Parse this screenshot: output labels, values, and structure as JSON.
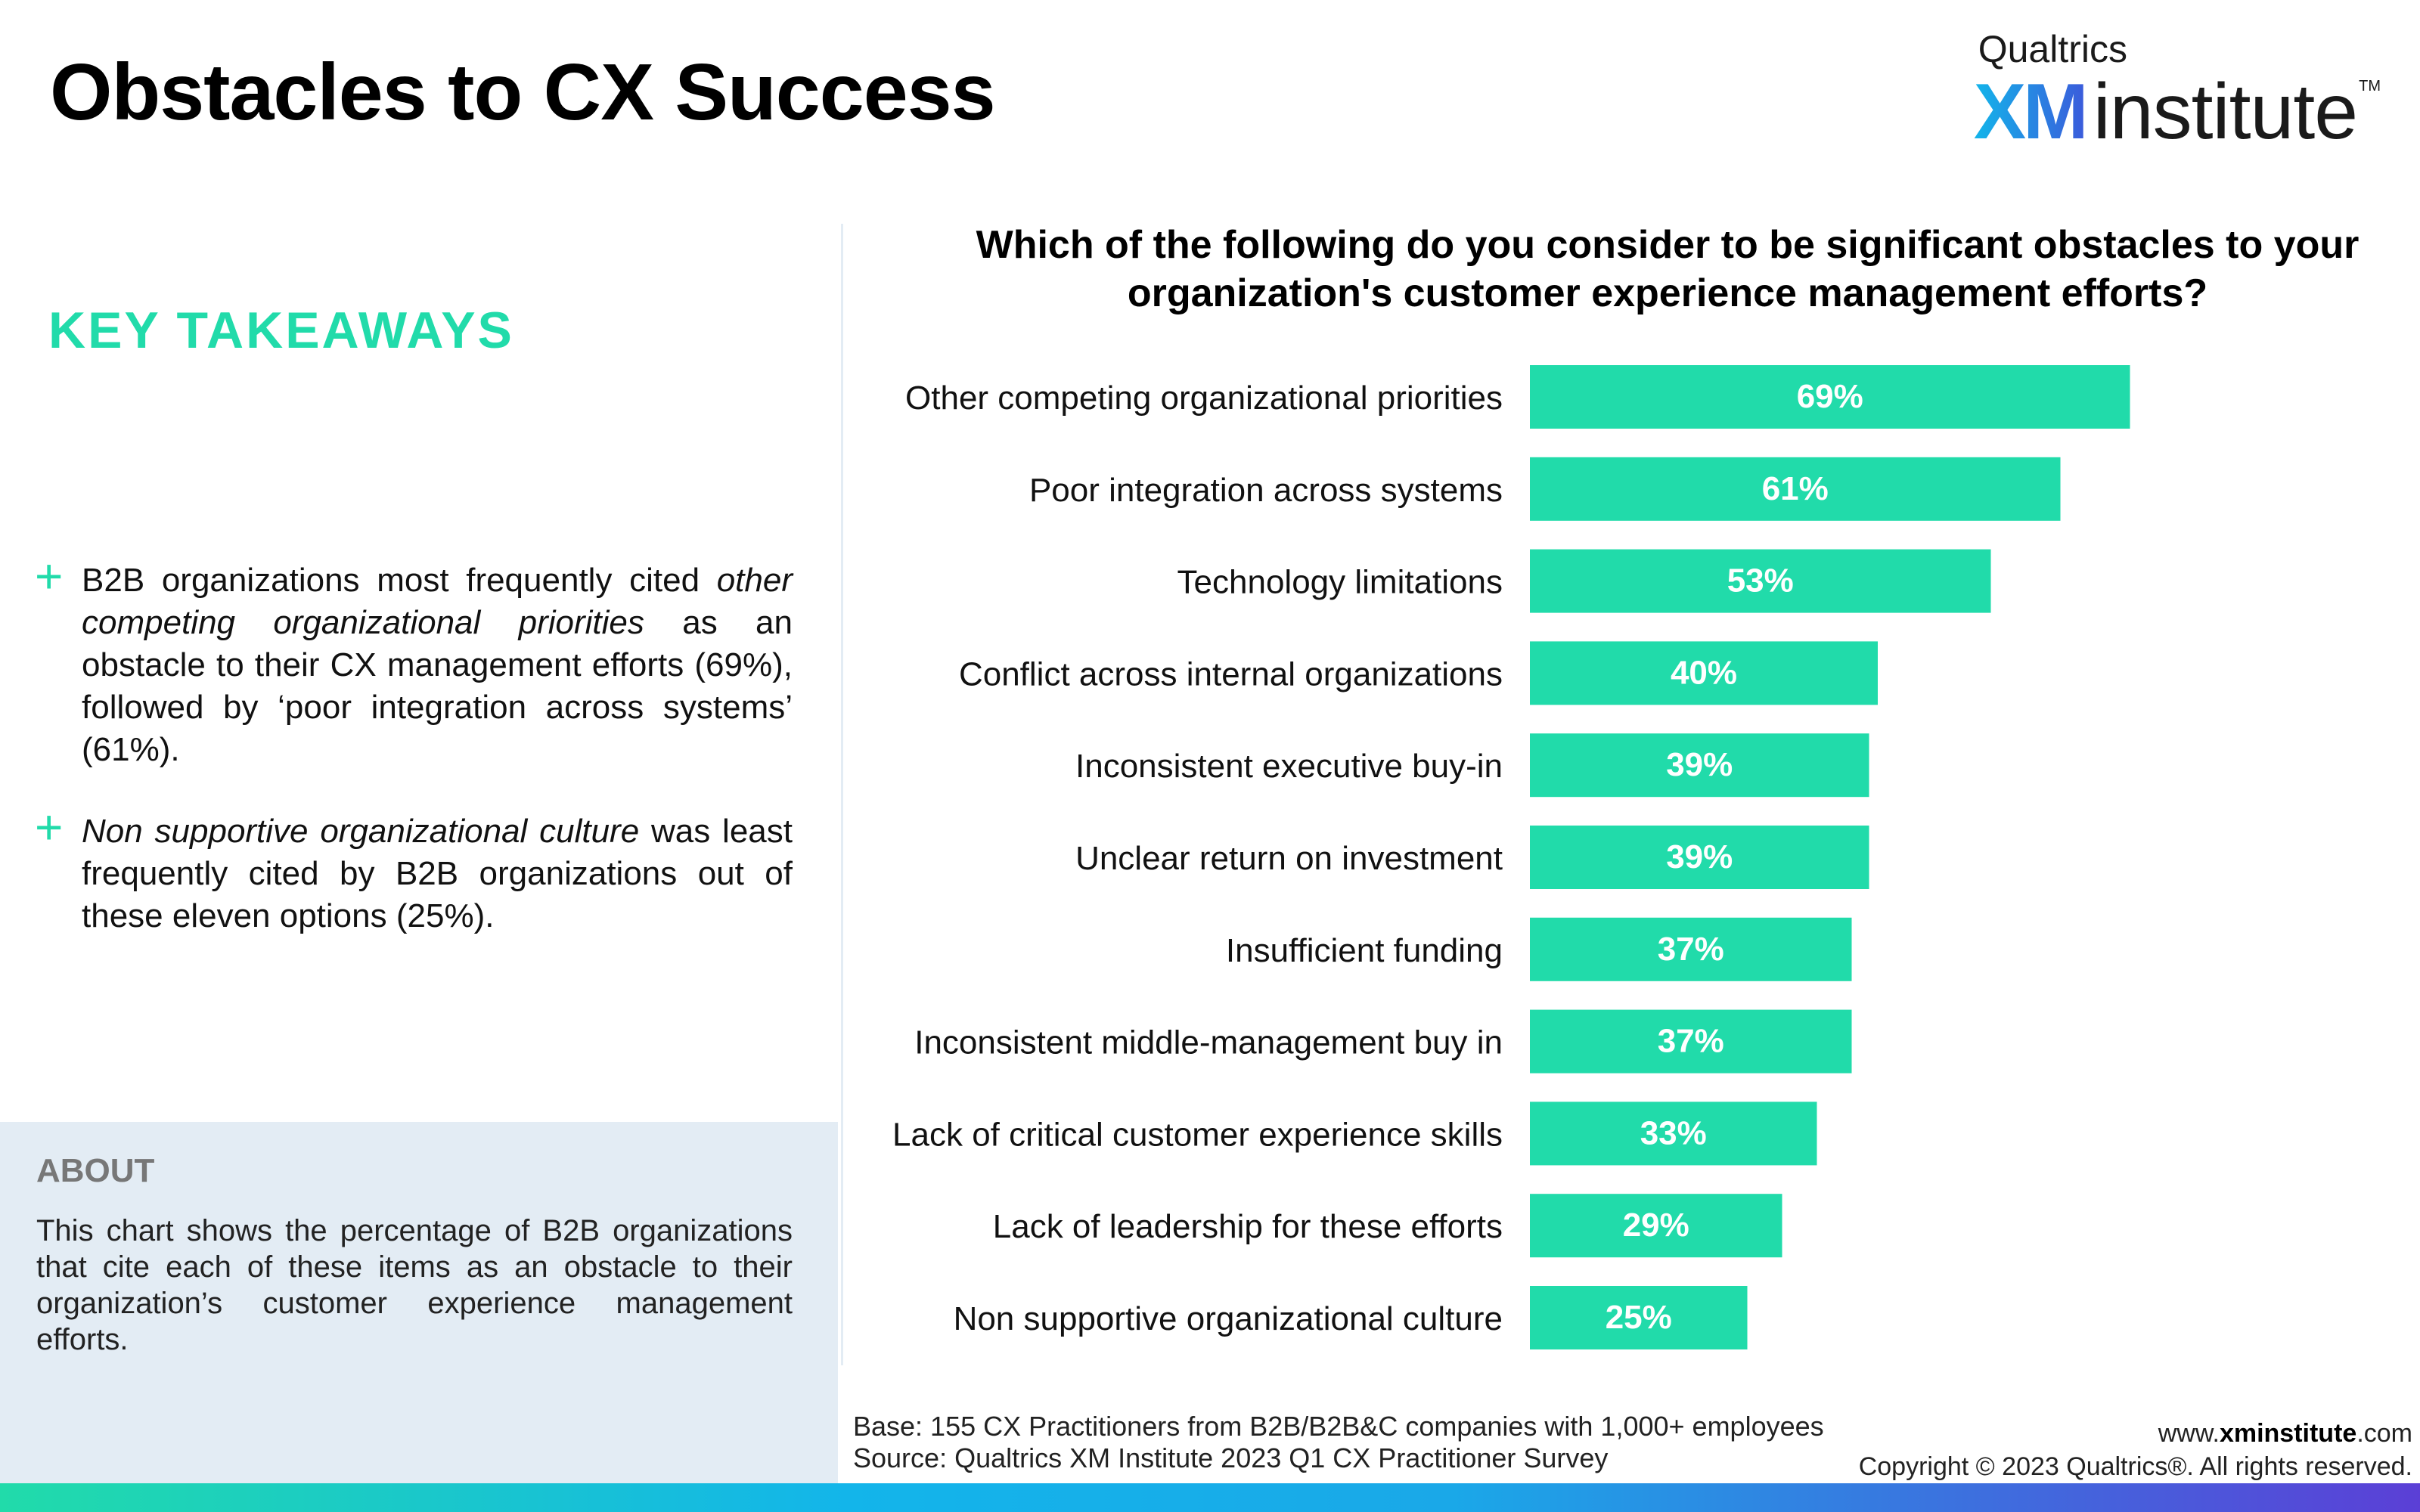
{
  "header": {
    "title": "Obstacles to CX Success",
    "logo": {
      "brand": "Qualtrics",
      "xm": "XM",
      "institute": "institute",
      "tm": "TM"
    }
  },
  "takeaways": {
    "heading": "KEY TAKEAWAYS",
    "bullet1": {
      "part1": "B2B organizations most frequently cited ",
      "italic": "other competing organizational priorities",
      "part2": " as an obstacle to their CX management efforts (69%), followed by ‘poor integration across systems’ (61%)."
    },
    "bullet2": {
      "italic": "Non supportive organizational culture",
      "part2": " was least frequently cited by B2B organizations out of these eleven options (25%)."
    }
  },
  "about": {
    "heading": "ABOUT",
    "text": "This chart shows the percentage of B2B organizations that cite each of these items as an obstacle to their organization’s customer experience management efforts."
  },
  "footer": {
    "base": "Base: 155 CX Practitioners from B2B/B2B&C companies with 1,000+ employees",
    "source": "Source: Qualtrics XM Institute 2023 Q1 CX Practitioner Survey",
    "site_prefix": "www.",
    "site_bold": "xminstitute",
    "site_suffix": ".com",
    "copyright": "Copyright © 2023 Qualtrics®. All rights reserved."
  },
  "colors": {
    "bar": "#21dbaa",
    "accent": "#21dbaa",
    "about_bg": "#e3ecf4"
  },
  "chart_data": {
    "type": "bar",
    "orientation": "horizontal",
    "title": "Which of the following do you consider to be significant obstacles to your organization's customer experience management efforts?",
    "categories": [
      "Other competing organizational priorities",
      "Poor integration across systems",
      "Technology limitations",
      "Conflict across internal organizations",
      "Inconsistent executive buy-in",
      "Unclear return on investment",
      "Insufficient funding",
      "Inconsistent middle-management buy in",
      "Lack of critical customer experience skills",
      "Lack of leadership for these efforts",
      "Non supportive organizational culture"
    ],
    "values": [
      69,
      61,
      53,
      40,
      39,
      39,
      37,
      37,
      33,
      29,
      25
    ],
    "value_labels": [
      "69%",
      "61%",
      "53%",
      "40%",
      "39%",
      "39%",
      "37%",
      "37%",
      "33%",
      "29%",
      "25%"
    ],
    "xlim": [
      0,
      100
    ],
    "unit": "%",
    "grid": false,
    "legend": "none"
  }
}
